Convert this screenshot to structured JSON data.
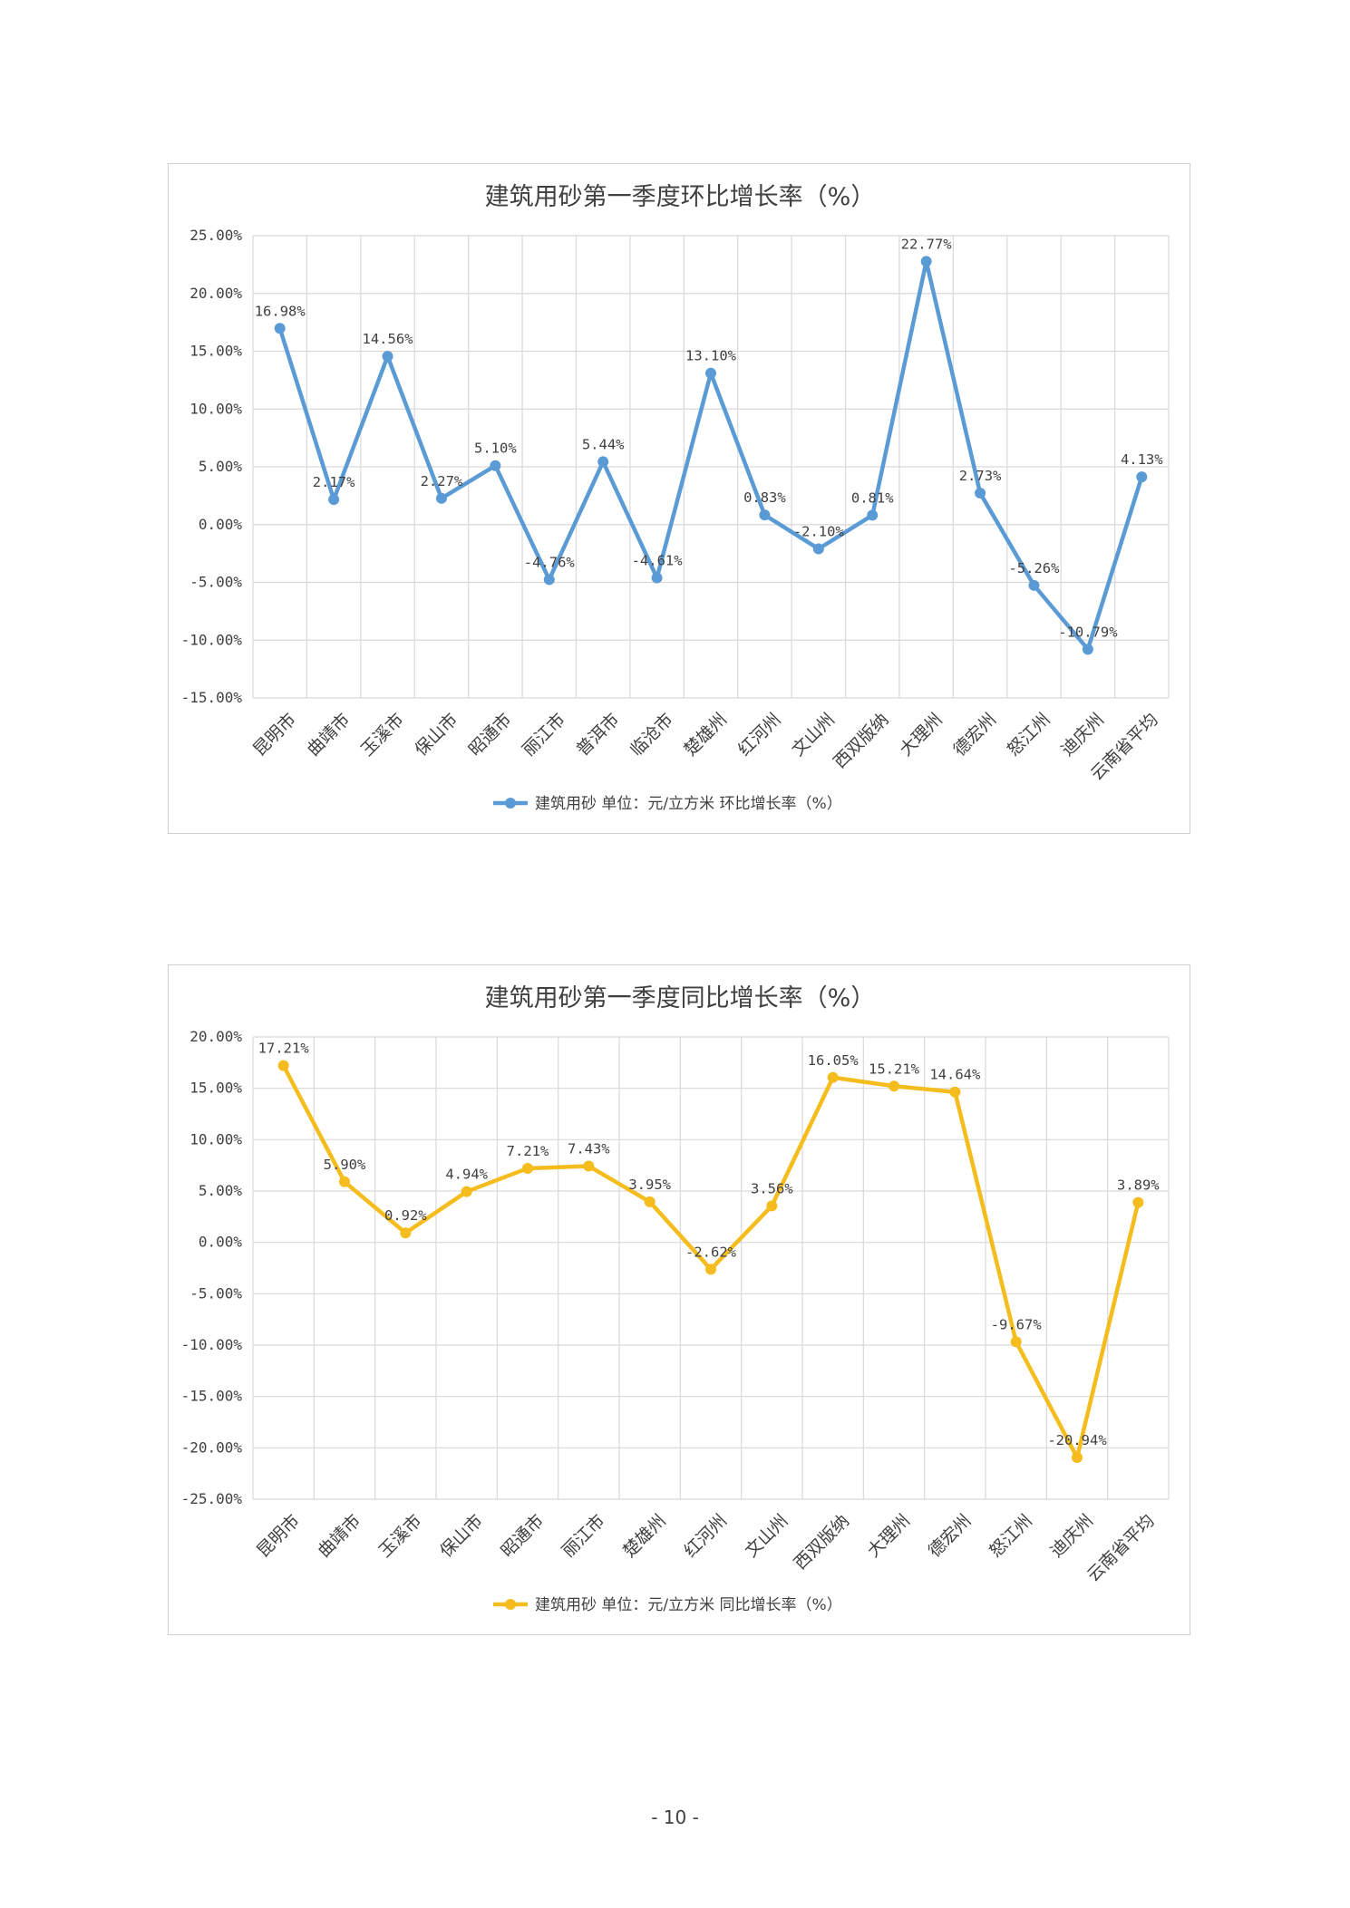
{
  "chart_data": [
    {
      "type": "line",
      "title": "建筑用砂第一季度环比增长率（%）",
      "categories": [
        "昆明市",
        "曲靖市",
        "玉溪市",
        "保山市",
        "昭通市",
        "丽江市",
        "普洱市",
        "临沧市",
        "楚雄州",
        "红河州",
        "文山州",
        "西双版纳",
        "大理州",
        "德宏州",
        "怒江州",
        "迪庆州",
        "云南省平均"
      ],
      "series": [
        {
          "name": "建筑用砂 单位：元/立方米 环比增长率（%）",
          "values": [
            16.98,
            2.17,
            14.56,
            2.27,
            5.1,
            -4.76,
            5.44,
            -4.61,
            13.1,
            0.83,
            -2.1,
            0.81,
            22.77,
            2.73,
            -5.26,
            -10.79,
            4.13
          ],
          "labels": [
            "16.98%",
            "2.17%",
            "14.56%",
            "2.27%",
            "5.10%",
            "-4.76%",
            "5.44%",
            "-4.61%",
            "13.10%",
            "0.83%",
            "-2.10%",
            "0.81%",
            "22.77%",
            "2.73%",
            "-5.26%",
            "-10.79%",
            "4.13%"
          ],
          "color": "#5B9BD5"
        }
      ],
      "ylim": [
        -15,
        25
      ],
      "yticks": [
        25,
        20,
        15,
        10,
        5,
        0,
        -5,
        -10,
        -15
      ],
      "ytick_labels": [
        "25.00%",
        "20.00%",
        "15.00%",
        "10.00%",
        "5.00%",
        "0.00%",
        "-5.00%",
        "-10.00%",
        "-15.00%"
      ],
      "xlabel": "",
      "ylabel": "",
      "grid": true,
      "legend": "bottom"
    },
    {
      "type": "line",
      "title": "建筑用砂第一季度同比增长率（%）",
      "categories": [
        "昆明市",
        "曲靖市",
        "玉溪市",
        "保山市",
        "昭通市",
        "丽江市",
        "楚雄州",
        "红河州",
        "文山州",
        "西双版纳",
        "大理州",
        "德宏州",
        "怒江州",
        "迪庆州",
        "云南省平均"
      ],
      "series": [
        {
          "name": "建筑用砂 单位：元/立方米 同比增长率（%）",
          "values": [
            17.21,
            5.9,
            0.92,
            4.94,
            7.21,
            7.43,
            3.95,
            -2.62,
            3.56,
            16.05,
            15.21,
            14.64,
            -9.67,
            -20.94,
            3.89
          ],
          "labels": [
            "17.21%",
            "5.90%",
            "0.92%",
            "4.94%",
            "7.21%",
            "7.43%",
            "3.95%",
            "-2.62%",
            "3.56%",
            "16.05%",
            "15.21%",
            "14.64%",
            "-9.67%",
            "-20.94%",
            "3.89%"
          ],
          "color": "#F4BC1C"
        }
      ],
      "ylim": [
        -25,
        20
      ],
      "yticks": [
        20,
        15,
        10,
        5,
        0,
        -5,
        -10,
        -15,
        -20,
        -25
      ],
      "ytick_labels": [
        "20.00%",
        "15.00%",
        "10.00%",
        "5.00%",
        "0.00%",
        "-5.00%",
        "-10.00%",
        "-15.00%",
        "-20.00%",
        "-25.00%"
      ],
      "xlabel": "",
      "ylabel": "",
      "grid": true,
      "legend": "bottom"
    }
  ],
  "page": {
    "number": "- 10 -"
  }
}
